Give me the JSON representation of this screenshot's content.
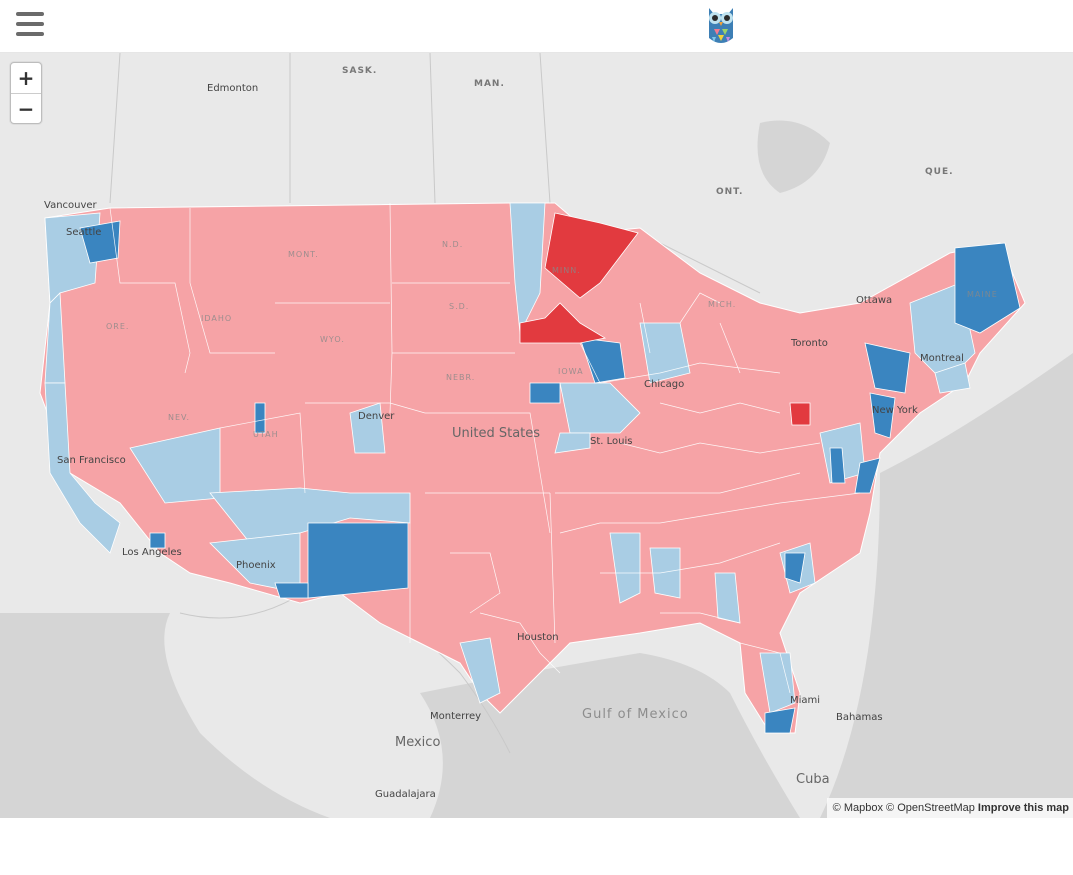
{
  "header": {
    "menu_icon": "hamburger-menu-icon",
    "logo_icon": "owl-logo-icon"
  },
  "map": {
    "zoom_in_label": "+",
    "zoom_out_label": "−",
    "colors": {
      "safe_republican": "#e23a3f",
      "lean_republican": "#f6a3a6",
      "lean_democrat": "#a9cde4",
      "safe_democrat": "#3a85c0",
      "land": "#e9e9e9",
      "water": "#d5d5d5"
    },
    "labels": {
      "edmonton": "Edmonton",
      "sask": "SASK.",
      "man": "MAN.",
      "ont": "ONT.",
      "que": "QUE.",
      "vancouver": "Vancouver",
      "seattle": "Seattle",
      "mont": "MONT.",
      "nd": "N.D.",
      "sd": "S.D.",
      "wyo": "WYO.",
      "nebr": "NEBR.",
      "ore": "ORE.",
      "idaho": "IDAHO",
      "nev": "NEV.",
      "utah": "UTAH",
      "minn": "MINN.",
      "iowa": "IOWA",
      "mich": "MICH.",
      "maine": "MAINE",
      "ottawa": "Ottawa",
      "toronto": "Toronto",
      "montreal": "Montreal",
      "new_york": "New York",
      "denver": "Denver",
      "united_states": "United States",
      "st_louis": "St. Louis",
      "chicago": "Chicago",
      "san_francisco": "San Francisco",
      "los_angeles": "Los Angeles",
      "phoenix": "Phoenix",
      "houston": "Houston",
      "miami": "Miami",
      "monterrey": "Monterrey",
      "mexico": "Mexico",
      "guadalajara": "Guadalajara",
      "gulf_of_mexico": "Gulf of Mexico",
      "bahamas": "Bahamas",
      "cuba": "Cuba"
    },
    "attribution": {
      "mapbox": "© Mapbox",
      "osm": "© OpenStreetMap",
      "improve": "Improve this map"
    }
  }
}
